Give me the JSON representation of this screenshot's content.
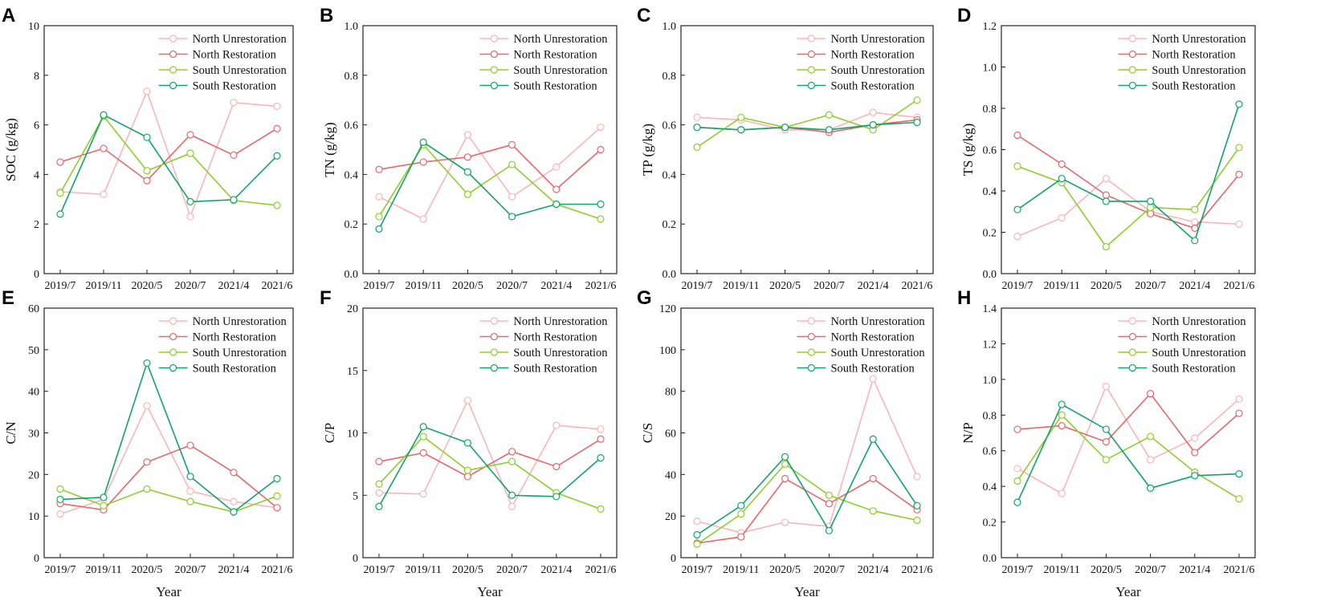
{
  "xlabel": "Year",
  "series_styles": [
    {
      "name": "North Unrestoration",
      "color": "#f7b6bb"
    },
    {
      "name": "North Restoration",
      "color": "#e3696d"
    },
    {
      "name": "South Unrestoration",
      "color": "#8fcd2e"
    },
    {
      "name": "South Restoration",
      "color": "#12a36c"
    }
  ],
  "chart_data": [
    {
      "label": "A",
      "type": "line",
      "ylabel": "SOC (g/kg)",
      "ylim": [
        0,
        10
      ],
      "yticks": [
        "0",
        "2",
        "4",
        "6",
        "8",
        "10"
      ],
      "categories": [
        "2019/7",
        "2019/11",
        "2020/5",
        "2020/7",
        "2021/4",
        "2021/6"
      ],
      "series": [
        {
          "name": "North Unrestoration",
          "values": [
            3.3,
            3.2,
            7.35,
            2.3,
            6.9,
            6.75
          ]
        },
        {
          "name": "North Restoration",
          "values": [
            4.5,
            5.05,
            3.75,
            5.6,
            4.78,
            5.85
          ]
        },
        {
          "name": "South Unrestoration",
          "values": [
            3.25,
            6.35,
            4.15,
            4.85,
            2.95,
            2.75
          ]
        },
        {
          "name": "South Restoration",
          "values": [
            2.4,
            6.4,
            5.5,
            2.9,
            2.98,
            4.75
          ]
        }
      ]
    },
    {
      "label": "B",
      "type": "line",
      "ylabel": "TN (g/kg)",
      "ylim": [
        0,
        1.0
      ],
      "yticks": [
        "0.0",
        "0.2",
        "0.4",
        "0.6",
        "0.8",
        "1.0"
      ],
      "categories": [
        "2019/7",
        "2019/11",
        "2020/5",
        "2020/7",
        "2021/4",
        "2021/6"
      ],
      "series": [
        {
          "name": "North Unrestoration",
          "values": [
            0.31,
            0.22,
            0.56,
            0.31,
            0.43,
            0.59
          ]
        },
        {
          "name": "North Restoration",
          "values": [
            0.42,
            0.45,
            0.47,
            0.52,
            0.34,
            0.5
          ]
        },
        {
          "name": "South Unrestoration",
          "values": [
            0.23,
            0.52,
            0.32,
            0.44,
            0.28,
            0.22
          ]
        },
        {
          "name": "South Restoration",
          "values": [
            0.18,
            0.53,
            0.41,
            0.23,
            0.28,
            0.28
          ]
        }
      ]
    },
    {
      "label": "C",
      "type": "line",
      "ylabel": "TP (g/kg)",
      "ylim": [
        0,
        1.0
      ],
      "yticks": [
        "0.0",
        "0.2",
        "0.4",
        "0.6",
        "0.8",
        "1.0"
      ],
      "categories": [
        "2019/7",
        "2019/11",
        "2020/5",
        "2020/7",
        "2021/4",
        "2021/6"
      ],
      "series": [
        {
          "name": "North Unrestoration",
          "values": [
            0.63,
            0.62,
            0.58,
            0.58,
            0.65,
            0.63
          ]
        },
        {
          "name": "North Restoration",
          "values": [
            0.59,
            0.58,
            0.59,
            0.57,
            0.6,
            0.62
          ]
        },
        {
          "name": "South Unrestoration",
          "values": [
            0.51,
            0.63,
            0.59,
            0.64,
            0.58,
            0.7
          ]
        },
        {
          "name": "South Restoration",
          "values": [
            0.59,
            0.58,
            0.59,
            0.58,
            0.6,
            0.61
          ]
        }
      ]
    },
    {
      "label": "D",
      "type": "line",
      "ylabel": "TS (g/kg)",
      "ylim": [
        0,
        1.2
      ],
      "yticks": [
        "0.0",
        "0.2",
        "0.4",
        "0.6",
        "0.8",
        "1.0",
        "1.2"
      ],
      "categories": [
        "2019/7",
        "2019/11",
        "2020/5",
        "2020/7",
        "2021/4",
        "2021/6"
      ],
      "series": [
        {
          "name": "North Unrestoration",
          "values": [
            0.18,
            0.27,
            0.46,
            0.3,
            0.25,
            0.24
          ]
        },
        {
          "name": "North Restoration",
          "values": [
            0.67,
            0.53,
            0.38,
            0.29,
            0.22,
            0.48
          ]
        },
        {
          "name": "South Unrestoration",
          "values": [
            0.52,
            0.44,
            0.13,
            0.32,
            0.31,
            0.61
          ]
        },
        {
          "name": "South Restoration",
          "values": [
            0.31,
            0.46,
            0.35,
            0.35,
            0.16,
            0.82
          ]
        }
      ]
    },
    {
      "label": "E",
      "type": "line",
      "ylabel": "C/N",
      "ylim": [
        0,
        60
      ],
      "yticks": [
        "0",
        "10",
        "20",
        "30",
        "40",
        "50",
        "60"
      ],
      "categories": [
        "2019/7",
        "2019/11",
        "2020/5",
        "2020/7",
        "2021/4",
        "2021/6"
      ],
      "series": [
        {
          "name": "North Unrestoration",
          "values": [
            10.5,
            14.0,
            36.5,
            16.0,
            13.5,
            12.0
          ]
        },
        {
          "name": "North Restoration",
          "values": [
            13.0,
            11.5,
            23.0,
            27.0,
            20.5,
            12.0
          ]
        },
        {
          "name": "South Unrestoration",
          "values": [
            16.5,
            12.5,
            16.5,
            13.5,
            11.0,
            14.8
          ]
        },
        {
          "name": "South Restoration",
          "values": [
            14.0,
            14.5,
            46.8,
            19.5,
            11.0,
            19.0
          ]
        }
      ]
    },
    {
      "label": "F",
      "type": "line",
      "ylabel": "C/P",
      "ylim": [
        0,
        20
      ],
      "yticks": [
        "0",
        "5",
        "10",
        "15",
        "20"
      ],
      "categories": [
        "2019/7",
        "2019/11",
        "2020/5",
        "2020/7",
        "2021/4",
        "2021/6"
      ],
      "series": [
        {
          "name": "North Unrestoration",
          "values": [
            5.2,
            5.1,
            12.6,
            4.1,
            10.6,
            10.3
          ]
        },
        {
          "name": "North Restoration",
          "values": [
            7.7,
            8.4,
            6.5,
            8.5,
            7.3,
            9.5
          ]
        },
        {
          "name": "South Unrestoration",
          "values": [
            5.9,
            9.7,
            7.0,
            7.7,
            5.2,
            3.9
          ]
        },
        {
          "name": "South Restoration",
          "values": [
            4.1,
            10.5,
            9.2,
            5.0,
            4.9,
            8.0
          ]
        }
      ]
    },
    {
      "label": "G",
      "type": "line",
      "ylabel": "C/S",
      "ylim": [
        0,
        120
      ],
      "yticks": [
        "0",
        "20",
        "40",
        "60",
        "80",
        "100",
        "120"
      ],
      "categories": [
        "2019/7",
        "2019/11",
        "2020/5",
        "2020/7",
        "2021/4",
        "2021/6"
      ],
      "series": [
        {
          "name": "North Unrestoration",
          "values": [
            17.5,
            12.0,
            17.0,
            15.0,
            86.0,
            39.0
          ]
        },
        {
          "name": "North Restoration",
          "values": [
            7.0,
            10.0,
            38.0,
            26.0,
            38.0,
            23.0
          ]
        },
        {
          "name": "South Unrestoration",
          "values": [
            6.5,
            21.0,
            45.0,
            30.0,
            22.5,
            18.0
          ]
        },
        {
          "name": "South Restoration",
          "values": [
            11.0,
            25.0,
            48.5,
            13.0,
            57.0,
            25.0
          ]
        }
      ]
    },
    {
      "label": "H",
      "type": "line",
      "ylabel": "N/P",
      "ylim": [
        0,
        1.4
      ],
      "yticks": [
        "0.0",
        "0.2",
        "0.4",
        "0.6",
        "0.8",
        "1.0",
        "1.2",
        "1.4"
      ],
      "categories": [
        "2019/7",
        "2019/11",
        "2020/5",
        "2020/7",
        "2021/4",
        "2021/6"
      ],
      "series": [
        {
          "name": "North Unrestoration",
          "values": [
            0.5,
            0.36,
            0.96,
            0.55,
            0.67,
            0.89
          ]
        },
        {
          "name": "North Restoration",
          "values": [
            0.72,
            0.74,
            0.65,
            0.92,
            0.59,
            0.81
          ]
        },
        {
          "name": "South Unrestoration",
          "values": [
            0.43,
            0.8,
            0.55,
            0.68,
            0.48,
            0.33
          ]
        },
        {
          "name": "South Restoration",
          "values": [
            0.31,
            0.86,
            0.72,
            0.39,
            0.46,
            0.47
          ]
        }
      ]
    }
  ]
}
